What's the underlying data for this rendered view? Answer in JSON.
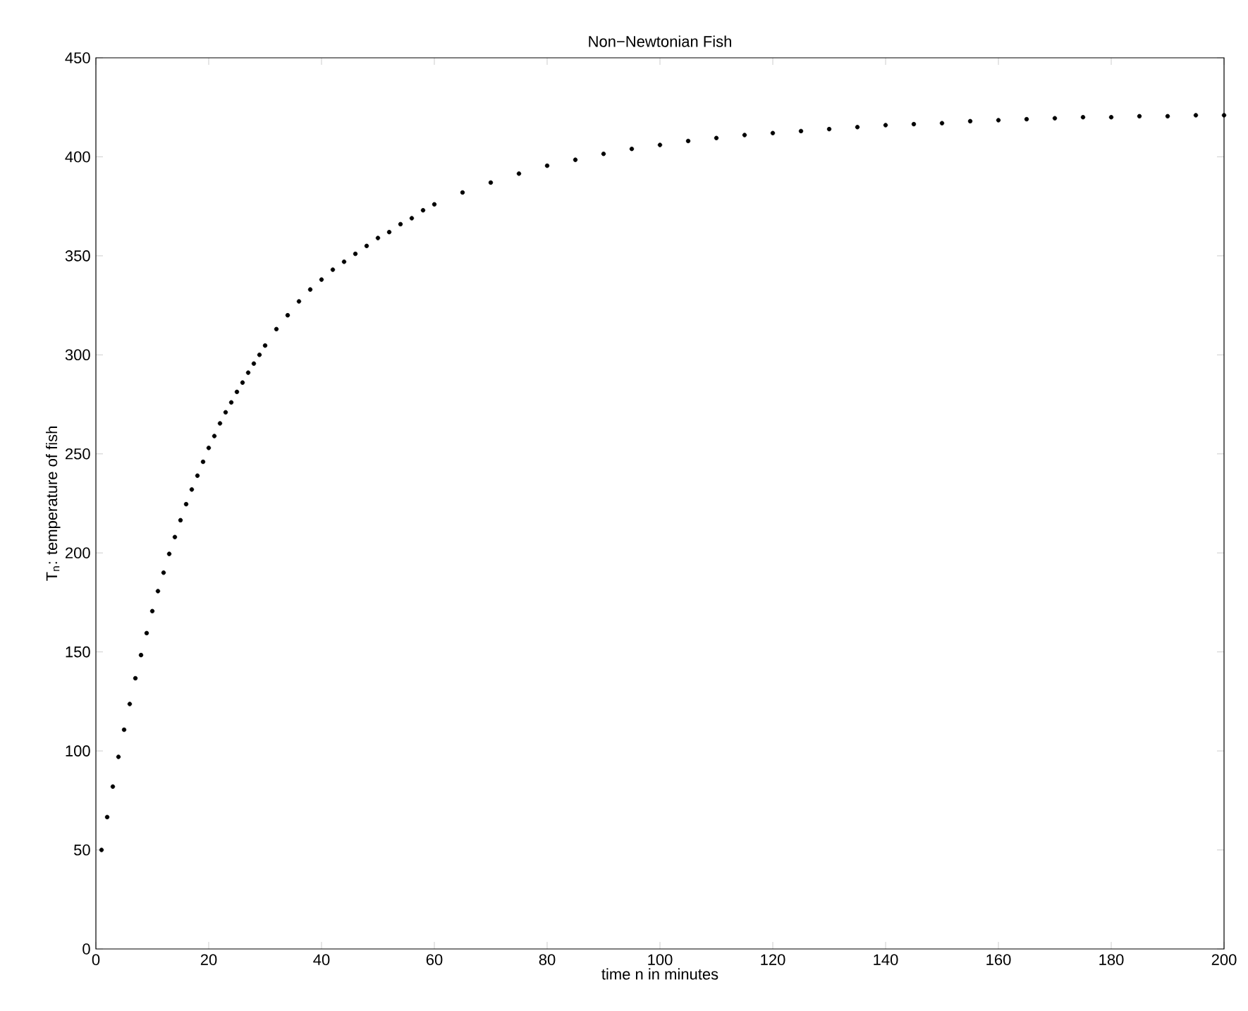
{
  "chart_data": {
    "type": "scatter",
    "title": "Non−Newtonian Fish",
    "xlabel": "time n in minutes",
    "ylabel": "T$_{n}$: temperature of fish",
    "x": [
      1,
      2,
      3,
      4,
      5,
      6,
      7,
      8,
      9,
      10,
      11,
      12,
      13,
      14,
      15,
      16,
      17,
      18,
      19,
      20,
      21,
      22,
      23,
      24,
      25,
      26,
      27,
      28,
      29,
      30,
      32,
      34,
      36,
      38,
      40,
      42,
      44,
      46,
      48,
      50,
      52,
      54,
      56,
      58,
      60,
      65,
      70,
      75,
      80,
      85,
      90,
      95,
      100,
      105,
      110,
      115,
      120,
      125,
      130,
      135,
      140,
      145,
      150,
      155,
      160,
      165,
      170,
      175,
      180,
      185,
      190,
      195,
      200
    ],
    "series": [
      {
        "color": "#000000",
        "values": [
          50,
          66.6,
          82,
          97,
          110.7,
          123.7,
          136.7,
          148.4,
          159.5,
          170.6,
          180.7,
          190,
          199.5,
          208,
          216.5,
          224.6,
          232,
          239,
          246,
          253,
          259,
          265.4,
          271,
          276,
          281.3,
          286,
          291,
          295.6,
          300,
          304.7,
          313,
          320,
          327,
          333,
          338,
          343,
          347,
          351,
          355,
          359,
          362,
          366,
          369,
          373,
          376,
          382,
          387,
          391.5,
          395.5,
          398.5,
          401.5,
          404,
          406,
          408,
          409.5,
          411,
          412,
          413,
          414,
          415,
          416,
          416.5,
          417,
          418,
          418.5,
          419,
          419.5,
          420,
          420,
          420.5,
          420.5,
          421,
          421
        ]
      }
    ],
    "xlim": [
      0,
      200
    ],
    "ylim": [
      0,
      450
    ],
    "xticks": [
      0,
      20,
      40,
      60,
      80,
      100,
      120,
      140,
      160,
      180,
      200
    ],
    "yticks": [
      0,
      50,
      100,
      150,
      200,
      250,
      300,
      350,
      400,
      450
    ],
    "marker": "circle",
    "grid": false
  }
}
